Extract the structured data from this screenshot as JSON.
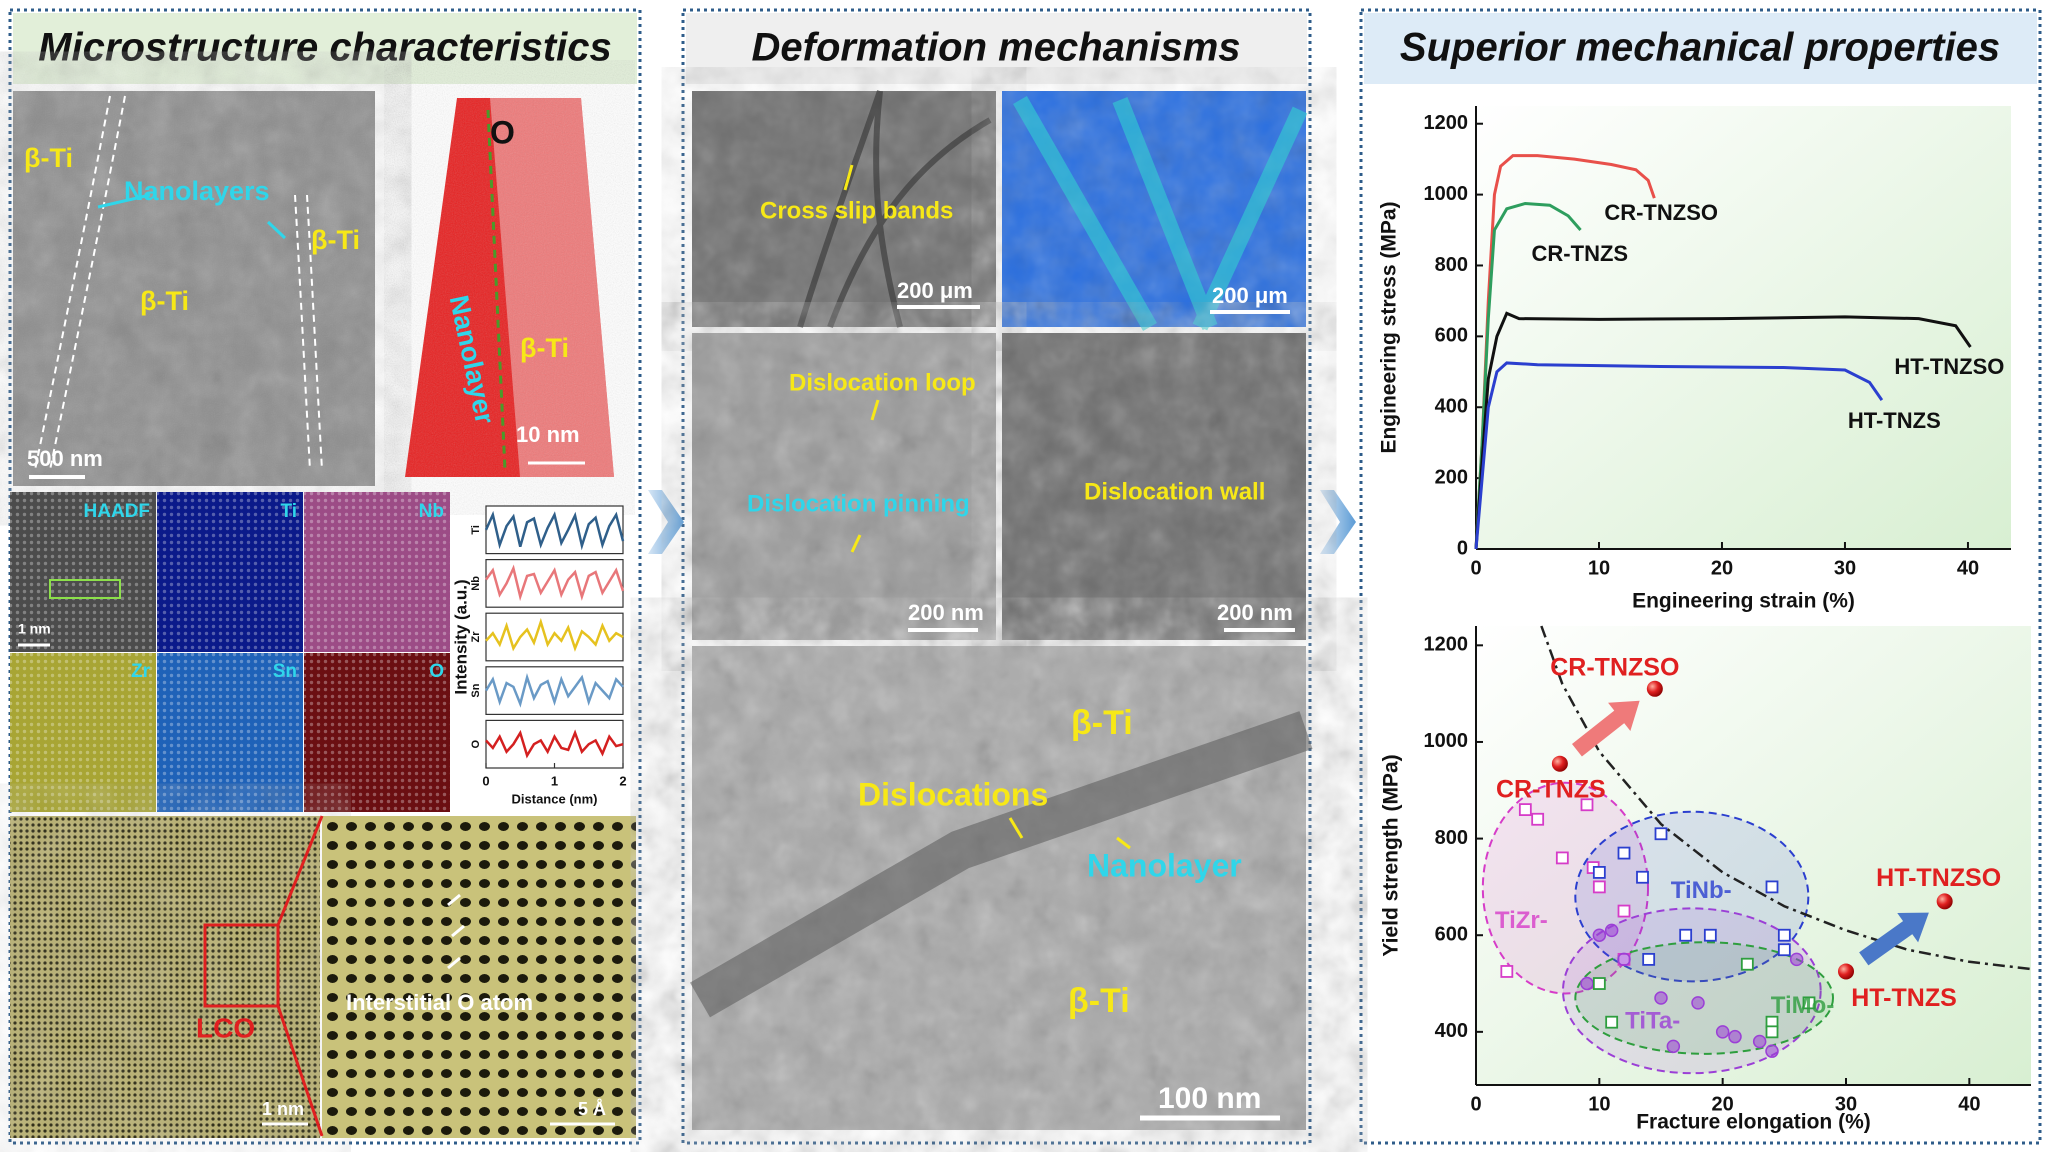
{
  "panels": [
    {
      "title": "Microstructure characteristics",
      "labels": [
        "β-Ti",
        "Nanolayers",
        "β-Ti",
        "β-Ti",
        "500 nm",
        "O",
        "Nanolayer",
        "β-Ti",
        "10 nm",
        "HAADF",
        "Ti",
        "Nb",
        "Zr",
        "Sn",
        "O",
        "1 nm",
        "LCO",
        "1 nm",
        "Interstitial O atom",
        "5 Å"
      ]
    },
    {
      "title": "Deformation mechanisms",
      "labels": [
        "Cross slip bands",
        "200 μm",
        "200 μm",
        "Dislocation loop",
        "Dislocation pinning",
        "200 nm",
        "Dislocation wall",
        "200 nm",
        "β-Ti",
        "Dislocations",
        "Nanolayer",
        "β-Ti",
        "100 nm"
      ]
    },
    {
      "title": "Superior mechanical properties"
    }
  ],
  "chart_data": [
    {
      "type": "ridgeline",
      "xlabel": "Distance (nm)",
      "ylabel": "Intensity (a.u.)",
      "xlim": [
        0,
        2
      ],
      "xticks": [
        0,
        1,
        2
      ],
      "ylim": [
        0,
        1
      ],
      "x": [
        0,
        0.1,
        0.2,
        0.3,
        0.4,
        0.5,
        0.6,
        0.7,
        0.8,
        0.9,
        1.0,
        1.1,
        1.2,
        1.3,
        1.4,
        1.5,
        1.6,
        1.7,
        1.8,
        1.9,
        2.0
      ],
      "series": [
        {
          "name": "Ti",
          "color": "#2f5f8a",
          "values": [
            0.5,
            0.9,
            0.1,
            0.6,
            0.85,
            0.05,
            0.7,
            0.8,
            0.1,
            0.55,
            0.9,
            0.15,
            0.5,
            0.88,
            0.08,
            0.65,
            0.82,
            0.1,
            0.6,
            0.9,
            0.2
          ]
        },
        {
          "name": "Nb",
          "color": "#e8777a",
          "values": [
            0.6,
            0.85,
            0.2,
            0.5,
            0.9,
            0.15,
            0.7,
            0.75,
            0.25,
            0.55,
            0.85,
            0.2,
            0.6,
            0.8,
            0.15,
            0.7,
            0.8,
            0.25,
            0.55,
            0.85,
            0.3
          ]
        },
        {
          "name": "Zr",
          "color": "#e6c21f",
          "values": [
            0.4,
            0.6,
            0.3,
            0.8,
            0.2,
            0.5,
            0.7,
            0.35,
            0.9,
            0.3,
            0.6,
            0.4,
            0.75,
            0.2,
            0.65,
            0.5,
            0.3,
            0.8,
            0.4,
            0.6,
            0.5
          ]
        },
        {
          "name": "Sn",
          "color": "#6a9ac6",
          "values": [
            0.5,
            0.8,
            0.2,
            0.7,
            0.6,
            0.15,
            0.85,
            0.3,
            0.65,
            0.75,
            0.2,
            0.8,
            0.35,
            0.6,
            0.85,
            0.2,
            0.7,
            0.5,
            0.3,
            0.8,
            0.6
          ]
        },
        {
          "name": "O",
          "color": "#d42020",
          "values": [
            0.6,
            0.4,
            0.7,
            0.3,
            0.5,
            0.8,
            0.2,
            0.5,
            0.6,
            0.3,
            0.7,
            0.4,
            0.35,
            0.8,
            0.3,
            0.5,
            0.6,
            0.25,
            0.7,
            0.45,
            0.5
          ]
        }
      ]
    },
    {
      "type": "line",
      "xlabel": "Engineering strain (%)",
      "ylabel": "Engineering stress (MPa)",
      "xlim": [
        0,
        43.5
      ],
      "ylim": [
        0,
        1250
      ],
      "xticks": [
        0,
        10,
        20,
        30,
        40
      ],
      "yticks": [
        0,
        200,
        400,
        600,
        800,
        1000,
        1200
      ],
      "series": [
        {
          "name": "CR-TNZSO",
          "color": "#e8504a",
          "x": [
            0,
            0.5,
            1,
            1.5,
            2,
            3,
            5,
            8,
            11,
            13,
            14,
            14.5
          ],
          "values": [
            0,
            300,
            700,
            1000,
            1080,
            1110,
            1110,
            1100,
            1085,
            1070,
            1040,
            990
          ]
        },
        {
          "name": "CR-TNZS",
          "color": "#2e9e5e",
          "x": [
            0,
            0.5,
            1,
            1.5,
            2.5,
            4,
            6,
            7.5,
            8.5
          ],
          "values": [
            0,
            300,
            650,
            900,
            960,
            975,
            970,
            940,
            900
          ]
        },
        {
          "name": "HT-TNZSO",
          "color": "#111111",
          "x": [
            0,
            0.5,
            1,
            1.7,
            2.5,
            3.5,
            10,
            20,
            30,
            36,
            39,
            40.2
          ],
          "values": [
            0,
            250,
            480,
            600,
            665,
            650,
            648,
            650,
            655,
            650,
            630,
            570
          ]
        },
        {
          "name": "HT-TNZS",
          "color": "#2b3fcf",
          "x": [
            0,
            0.5,
            1,
            1.7,
            2.5,
            5,
            15,
            25,
            30,
            32,
            33
          ],
          "values": [
            0,
            200,
            400,
            500,
            525,
            520,
            515,
            512,
            505,
            470,
            420
          ]
        }
      ]
    },
    {
      "type": "scatter",
      "xlabel": "Fracture elongation (%)",
      "ylabel": "Yield strength (MPa)",
      "xlim": [
        0,
        45
      ],
      "ylim": [
        290,
        1240
      ],
      "xticks": [
        0,
        10,
        20,
        30,
        40
      ],
      "yticks": [
        400,
        600,
        800,
        1000,
        1200
      ],
      "series": [
        {
          "name": "TiZr-",
          "color": "#d63cc8",
          "marker": "square",
          "x": [
            2.5,
            4,
            5,
            7,
            9,
            10,
            12,
            9.5,
            12
          ],
          "values": [
            525,
            860,
            840,
            760,
            870,
            700,
            650,
            740,
            550
          ]
        },
        {
          "name": "TiNb-",
          "color": "#2b3fcf",
          "marker": "square",
          "x": [
            10,
            12,
            13.5,
            15,
            17,
            19,
            24,
            25,
            25,
            14
          ],
          "values": [
            730,
            770,
            720,
            810,
            600,
            600,
            700,
            600,
            570,
            550
          ]
        },
        {
          "name": "TiTa-",
          "color": "#9b3fd6",
          "marker": "circle",
          "x": [
            9,
            10,
            11,
            12,
            15,
            16,
            18,
            20,
            21,
            23,
            24,
            26
          ],
          "values": [
            500,
            600,
            610,
            550,
            470,
            370,
            460,
            400,
            390,
            380,
            360,
            550
          ]
        },
        {
          "name": "TiMo-",
          "color": "#2e9e3e",
          "marker": "square",
          "x": [
            10,
            11,
            22,
            24,
            24,
            27
          ],
          "values": [
            500,
            420,
            540,
            420,
            400,
            460
          ]
        },
        {
          "name": "CR-TNZSO",
          "color": "#e02020",
          "marker": "sphere",
          "x": [
            14.5
          ],
          "values": [
            1110
          ]
        },
        {
          "name": "CR-TNZS",
          "color": "#e02020",
          "marker": "sphere",
          "x": [
            6.8
          ],
          "values": [
            955
          ]
        },
        {
          "name": "HT-TNZSO",
          "color": "#e02020",
          "marker": "sphere",
          "x": [
            38
          ],
          "values": [
            670
          ]
        },
        {
          "name": "HT-TNZS",
          "color": "#e02020",
          "marker": "sphere",
          "x": [
            30
          ],
          "values": [
            525
          ]
        }
      ],
      "trend": {
        "x": [
          5.3,
          7,
          10,
          15,
          20,
          25,
          30,
          35,
          40,
          45
        ],
        "y": [
          1240,
          1120,
          980,
          830,
          730,
          660,
          610,
          570,
          545,
          530
        ]
      }
    }
  ]
}
